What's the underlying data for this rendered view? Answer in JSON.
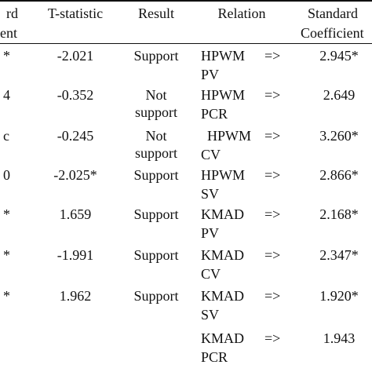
{
  "table": {
    "header": {
      "left": [
        "rd",
        "ent"
      ],
      "tstat": "T-statistic",
      "result": "Result",
      "relation": "Relation",
      "coef": [
        "Standard",
        "Coefficient"
      ]
    },
    "rows": [
      {
        "left": "*",
        "tstat": "-2.021",
        "result": [
          "Support"
        ],
        "relation": [
          "HPWM",
          "PV"
        ],
        "arrow": "=>",
        "coef": "2.945*"
      },
      {
        "left": "4",
        "tstat": "-0.352",
        "result": [
          "Not",
          "support"
        ],
        "relation": [
          "HPWM",
          "PCR"
        ],
        "arrow": "=>",
        "coef": "2.649"
      },
      {
        "left": "c",
        "tstat": "-0.245",
        "result": [
          "Not",
          "support"
        ],
        "relation": [
          "HPWM",
          "CV"
        ],
        "arrow": "=>",
        "coef": "3.260*"
      },
      {
        "left": "0",
        "tstat": "-2.025*",
        "result": [
          "Support"
        ],
        "relation": [
          "HPWM",
          "SV"
        ],
        "arrow": "=>",
        "coef": "2.866*"
      },
      {
        "left": "*",
        "tstat": "1.659",
        "result": [
          "Support"
        ],
        "relation": [
          "KMAD",
          "PV"
        ],
        "arrow": "=>",
        "coef": "2.168*"
      },
      {
        "left": "*",
        "tstat": "-1.991",
        "result": [
          "Support"
        ],
        "relation": [
          "KMAD",
          "CV"
        ],
        "arrow": "=>",
        "coef": "2.347*"
      },
      {
        "left": "*",
        "tstat": "1.962",
        "result": [
          "Support"
        ],
        "relation": [
          "KMAD",
          "SV"
        ],
        "arrow": "=>",
        "coef": "1.920*"
      },
      {
        "relation": [
          "KMAD",
          "PCR"
        ],
        "arrow": "=>",
        "coef": "1.943"
      }
    ]
  }
}
